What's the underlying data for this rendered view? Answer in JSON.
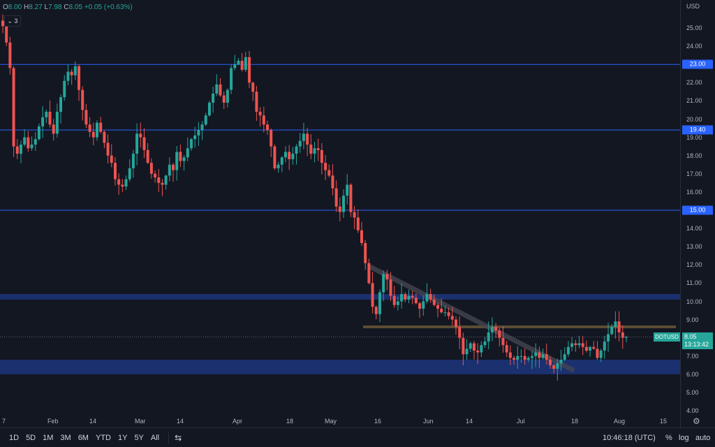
{
  "legend": {
    "open_label": "O",
    "open": "8.00",
    "high_label": "H",
    "high": "8.27",
    "low_label": "L",
    "low": "7.98",
    "close_label": "C",
    "close": "8.05",
    "change": "+0.05 (+0.63%)",
    "collapse_count": "3"
  },
  "price_axis": {
    "currency": "USD",
    "ticks": [
      "25.00",
      "24.00",
      "23.00",
      "22.00",
      "21.00",
      "20.00",
      "19.00",
      "18.00",
      "17.00",
      "16.00",
      "15.00",
      "14.00",
      "13.00",
      "12.00",
      "11.00",
      "10.00",
      "9.00",
      "8.00",
      "7.00",
      "6.00",
      "5.00",
      "4.00"
    ],
    "badges": [
      "23.00",
      "19.40",
      "15.00"
    ],
    "last_price": "8.05",
    "countdown": "13:13:42",
    "symbol": "DOTUSD"
  },
  "time_axis": {
    "labels": [
      "7",
      "Feb",
      "14",
      "Mar",
      "14",
      "Apr",
      "18",
      "May",
      "16",
      "Jun",
      "14",
      "Jul",
      "18",
      "Aug",
      "15"
    ]
  },
  "bottom_bar": {
    "ranges": [
      "1D",
      "5D",
      "1M",
      "3M",
      "6M",
      "YTD",
      "1Y",
      "5Y",
      "All"
    ],
    "clock": "10:46:18 (UTC)",
    "percent": "%",
    "log": "log",
    "auto": "auto"
  },
  "colors": {
    "up": "#26a69a",
    "down": "#ef5350",
    "horizontal_line": "#2962ff",
    "zone": "#1e3a8a",
    "background": "#131722"
  },
  "chart_data": {
    "type": "candlestick",
    "ylim": [
      4,
      25.5
    ],
    "horizontal_levels": [
      23.0,
      19.4,
      15.0
    ],
    "zones": [
      [
        10.1,
        10.4
      ],
      [
        6.0,
        6.8
      ]
    ],
    "resistance_level": 8.6,
    "trendline": [
      [
        11.9,
        "May 12"
      ],
      [
        6.2,
        "Jul 12"
      ]
    ],
    "closes": [
      25.1,
      24.2,
      22.8,
      18.5,
      18.1,
      18.6,
      19.0,
      18.4,
      18.6,
      18.9,
      19.6,
      20.1,
      20.4,
      19.7,
      19.2,
      20.4,
      21.2,
      22.1,
      22.6,
      22.4,
      22.9,
      21.6,
      20.5,
      19.7,
      19.3,
      19.0,
      19.8,
      19.3,
      18.7,
      18.0,
      17.6,
      16.7,
      16.4,
      16.3,
      16.7,
      17.3,
      18.1,
      19.2,
      19.0,
      18.3,
      17.6,
      17.0,
      16.8,
      16.5,
      16.4,
      16.9,
      17.5,
      17.2,
      18.2,
      17.7,
      17.9,
      18.4,
      18.9,
      19.1,
      19.4,
      19.7,
      20.2,
      20.9,
      21.4,
      21.9,
      21.3,
      20.9,
      21.6,
      22.8,
      23.0,
      23.2,
      22.7,
      23.4,
      22.0,
      21.5,
      20.4,
      20.2,
      19.7,
      19.4,
      18.5,
      17.3,
      17.5,
      17.9,
      18.2,
      17.8,
      18.1,
      18.5,
      18.8,
      19.2,
      18.6,
      18.1,
      18.4,
      18.3,
      17.6,
      17.2,
      16.9,
      16.2,
      15.2,
      14.9,
      15.8,
      16.4,
      14.9,
      14.6,
      13.9,
      13.2,
      12.1,
      11.0,
      9.7,
      9.3,
      10.5,
      11.5,
      11.2,
      10.3,
      9.8,
      10.0,
      10.4,
      10.1,
      10.3,
      10.2,
      9.9,
      9.6,
      10.0,
      10.4,
      10.1,
      9.8,
      9.6,
      9.4,
      9.4,
      9.2,
      9.0,
      8.6,
      8.0,
      7.1,
      7.4,
      7.7,
      7.3,
      7.2,
      7.6,
      7.8,
      8.3,
      8.6,
      8.4,
      8.0,
      7.6,
      7.2,
      6.9,
      6.8,
      7.0,
      7.0,
      6.8,
      6.9,
      7.0,
      7.2,
      6.9,
      7.1,
      6.8,
      6.5,
      6.3,
      6.6,
      6.8,
      7.1,
      7.5,
      7.7,
      7.6,
      7.7,
      7.5,
      7.3,
      7.5,
      7.4,
      6.9,
      7.3,
      7.8,
      8.2,
      8.6,
      8.9,
      8.3,
      8.0,
      8.05
    ]
  }
}
